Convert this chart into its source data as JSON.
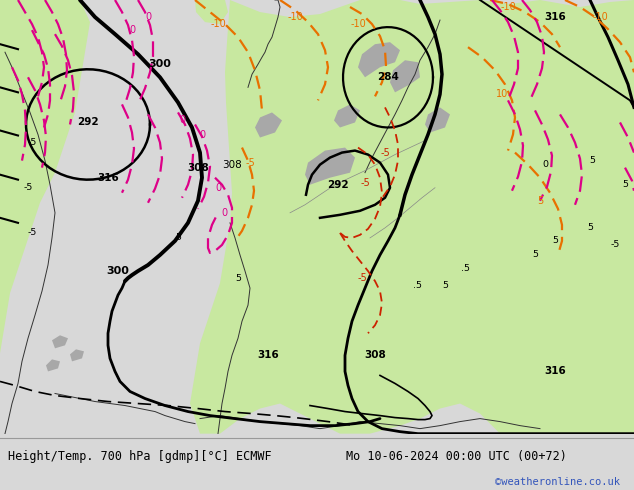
{
  "title_left": "Height/Temp. 700 hPa [gdmp][°C] ECMWF",
  "title_right": "Mo 10-06-2024 00:00 UTC (00+72)",
  "credit": "©weatheronline.co.uk",
  "land_color": "#c8e8a0",
  "sea_color": "#dcdcdc",
  "mountain_color": "#a8a8a8",
  "footer_bg": "#d8d8d8",
  "title_fontsize": 8.5,
  "credit_fontsize": 7.5,
  "credit_color": "#3355bb",
  "orange": "#e87000",
  "red": "#cc2200",
  "pink": "#dd0088",
  "black": "#000000"
}
